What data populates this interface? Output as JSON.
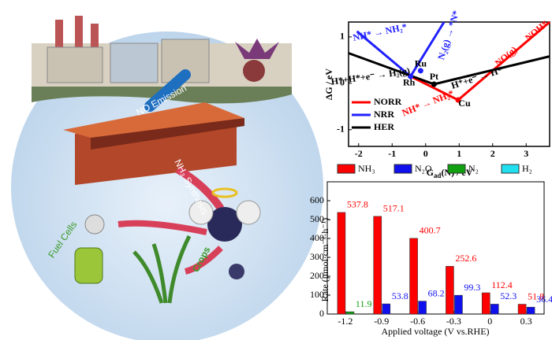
{
  "chart_data": [
    {
      "type": "line",
      "ylabel": "ΔG / eV",
      "xlabel": [
        "G",
        "ad",
        "(N) / eV"
      ],
      "xlim": [
        -2.3,
        3.7
      ],
      "ylim": [
        -1.36,
        1.32
      ],
      "xticks": [
        -2,
        -1,
        0,
        1,
        2,
        3
      ],
      "yticks": [
        -1,
        0,
        1
      ],
      "series": [
        {
          "name": "NORR",
          "color": "#ff0000",
          "x": [
            -0.45,
            0.97,
            3.7
          ],
          "values": [
            0.15,
            -0.36,
            1.32
          ]
        },
        {
          "name": "NRR",
          "color": "#2020ff",
          "x": [
            -2.05,
            -0.45,
            0.55
          ],
          "values": [
            1.12,
            0.15,
            1.32
          ]
        },
        {
          "name": "HER",
          "color": "#000000",
          "x": [
            -2.3,
            0.25,
            3.7
          ],
          "values": [
            0.65,
            -0.02,
            0.58
          ]
        }
      ],
      "points": [
        {
          "label": "Ru",
          "x": -0.15,
          "y": 0.27,
          "color": "#2020ff"
        },
        {
          "label": "Rh",
          "x": -0.45,
          "y": 0.15,
          "color": "#2020ff"
        },
        {
          "label": "Pt",
          "x": 0.25,
          "y": -0.02,
          "color": "#000000"
        },
        {
          "label": "Cu",
          "x": 0.97,
          "y": -0.36,
          "color": "#ff0000"
        }
      ],
      "annotations": [
        {
          "text": "NH* → NH₂*",
          "color": "#2020ff"
        },
        {
          "text": "N₂(g) → *N*",
          "color": "#2020ff"
        },
        {
          "text": "H*+H*+e⁻ → H₂(g)",
          "color": "#000000"
        },
        {
          "text": "NH* → NH₂*",
          "color": "#ff0000"
        },
        {
          "text": "H⁺+e⁻ → H*",
          "color": "#000000"
        },
        {
          "text": "NO(g) → NOH*",
          "color": "#ff0000"
        }
      ]
    },
    {
      "type": "bar",
      "ylabel": "Rate (μmol·cm⁻²·h⁻¹)",
      "xlabel": "Applied voltage (V vs.RHE)",
      "categories": [
        "-1.2",
        "-0.9",
        "-0.6",
        "-0.3",
        "0",
        "0.3"
      ],
      "ylim": [
        0,
        700
      ],
      "yticks": [
        0,
        100,
        200,
        300,
        400,
        500,
        600
      ],
      "series": [
        {
          "name": "NH₃",
          "color": "#ff0000",
          "values": [
            537.8,
            517.1,
            400.7,
            252.6,
            112.4,
            51.8
          ]
        },
        {
          "name": "N₂O",
          "color": "#1010ee",
          "values": [
            null,
            53.8,
            68.2,
            99.3,
            52.3,
            36.4
          ]
        },
        {
          "name": "N₂",
          "color": "#10a010",
          "values": [
            11.9,
            null,
            null,
            null,
            null,
            null
          ]
        },
        {
          "name": "H₂",
          "color": "#20e0f0",
          "values": [
            null,
            null,
            null,
            null,
            null,
            null
          ]
        }
      ]
    }
  ],
  "illustration": {
    "labels": [
      "NO Emission",
      "NH₃ Synthesis",
      "Fuel Cells",
      "Crops"
    ]
  }
}
